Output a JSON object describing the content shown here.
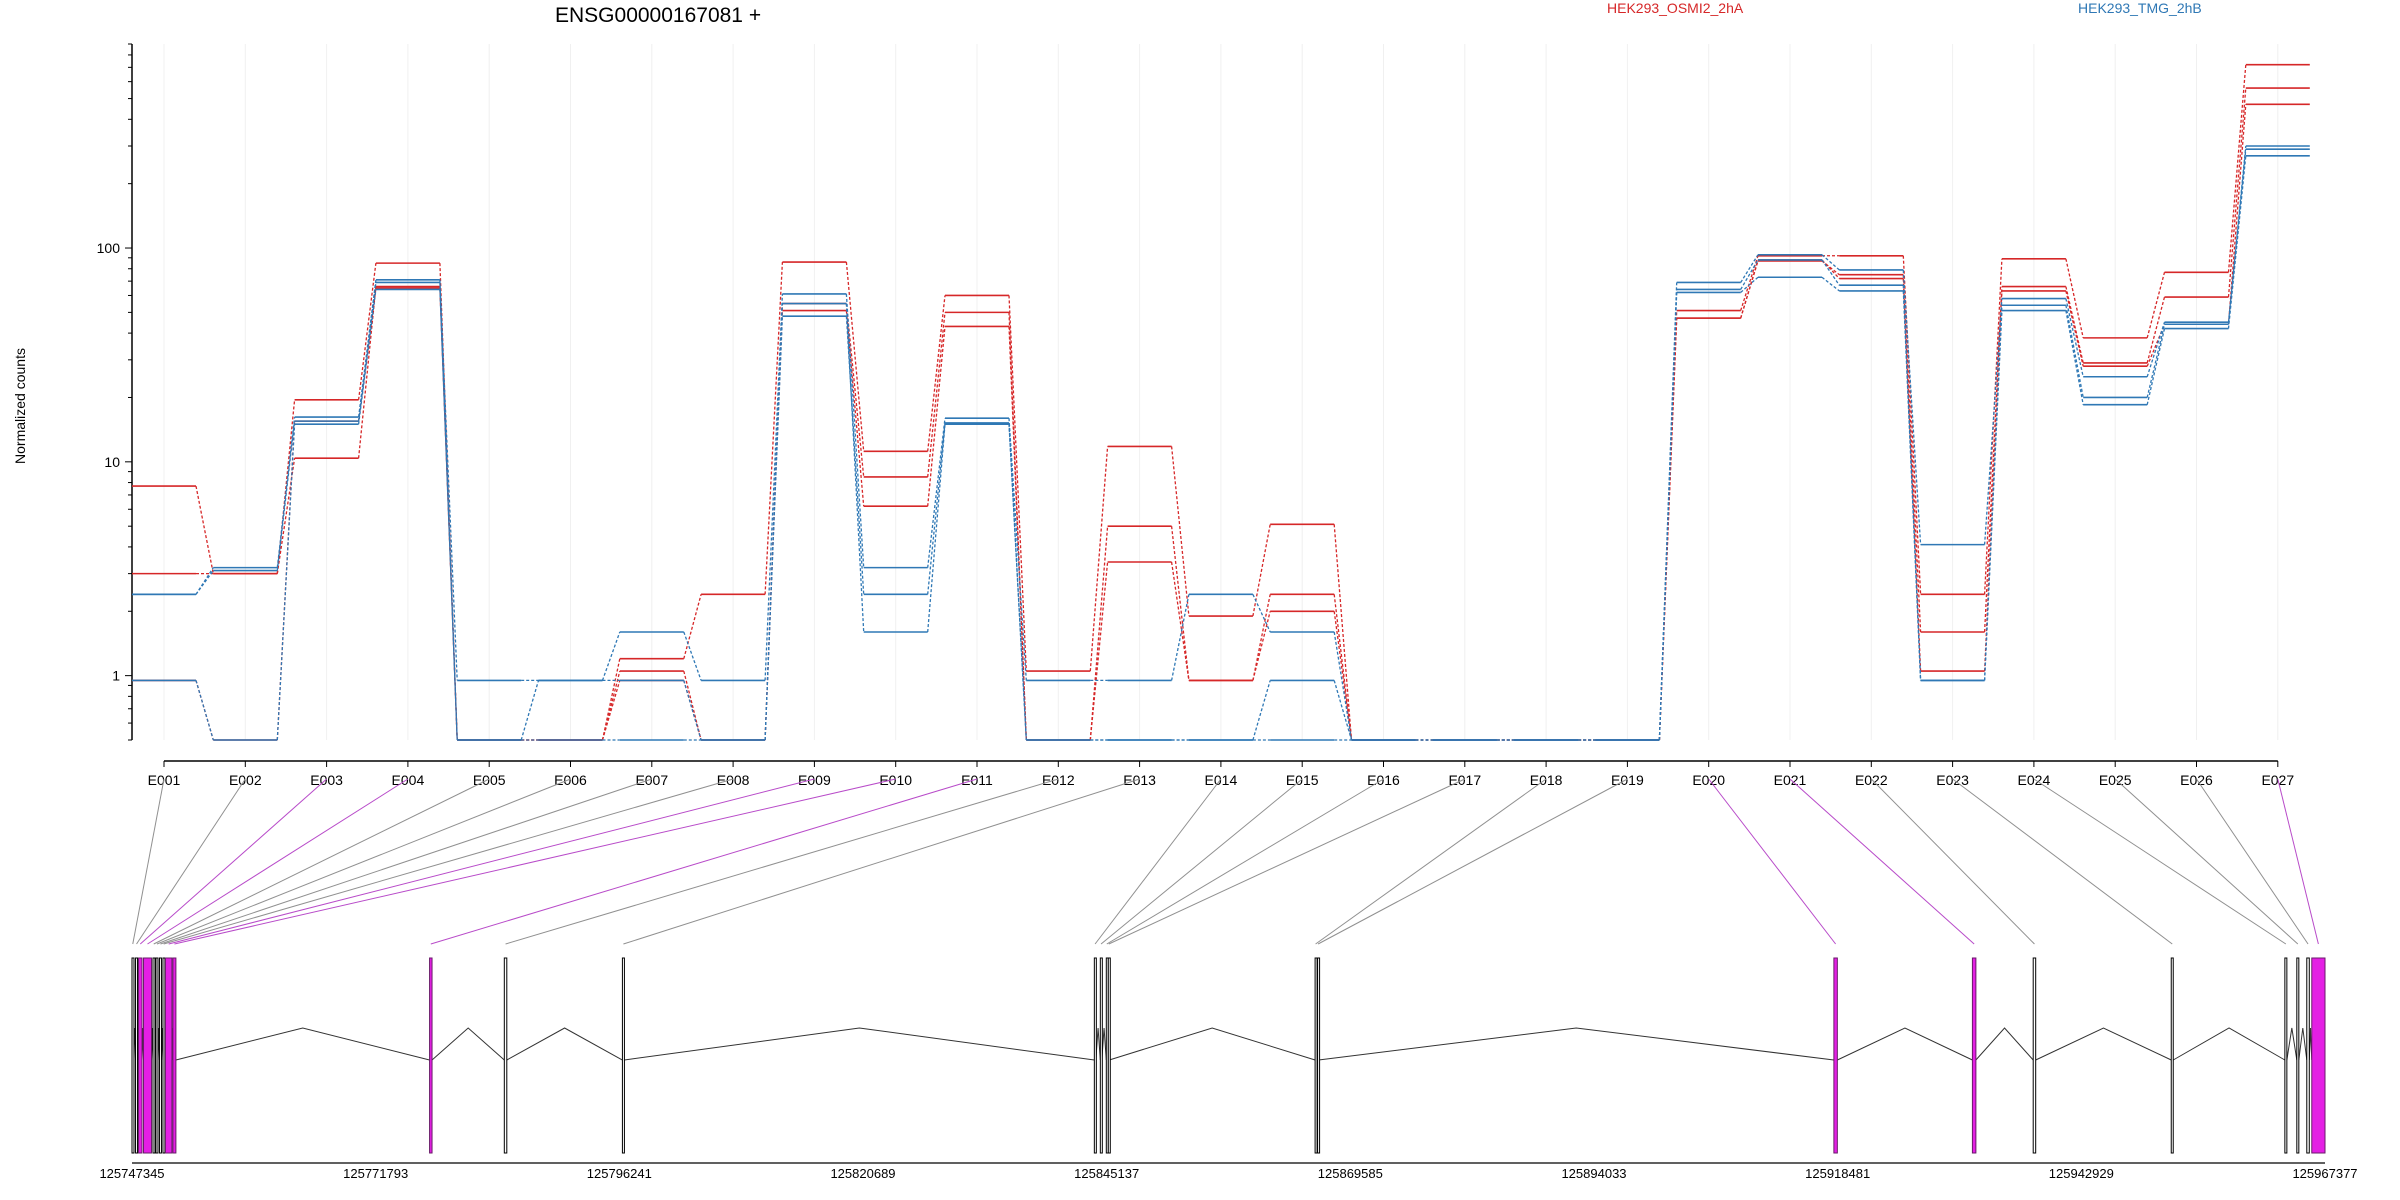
{
  "chart_data": {
    "type": "line",
    "title": "ENSG00000167081 +",
    "ylabel": "Normalized counts",
    "yscale": "log",
    "ylim": [
      0.5,
      900
    ],
    "yticks": [
      1,
      10,
      100
    ],
    "ytick_labels": [
      "1",
      "10",
      "100"
    ],
    "categories": [
      "E001",
      "E002",
      "E003",
      "E004",
      "E005",
      "E006",
      "E007",
      "E008",
      "E009",
      "E010",
      "E011",
      "E012",
      "E013",
      "E014",
      "E015",
      "E016",
      "E017",
      "E018",
      "E019",
      "E020",
      "E021",
      "E022",
      "E023",
      "E024",
      "E025",
      "E026",
      "E027"
    ],
    "legend": [
      {
        "label": "HEK293_OSMI2_2hA",
        "color": "#d62728"
      },
      {
        "label": "HEK293_TMG_2hB",
        "color": "#2f78b5"
      }
    ],
    "series": [
      {
        "group": "HEK293_OSMI2_2hA",
        "color": "#d62728",
        "values": [
          7.7,
          3.0,
          19.5,
          85,
          0.5,
          0.5,
          1.2,
          2.4,
          86,
          11.2,
          60,
          1.05,
          11.8,
          1.9,
          5.1,
          0.5,
          0.5,
          0.5,
          0.5,
          51,
          92,
          92,
          2.4,
          89,
          38,
          77,
          720
        ]
      },
      {
        "group": "HEK293_OSMI2_2hA",
        "color": "#d62728",
        "values": [
          3.0,
          3.0,
          10.4,
          66,
          0.5,
          0.5,
          1.05,
          0.5,
          55,
          8.5,
          50,
          0.5,
          5.0,
          0.95,
          2.4,
          0.5,
          0.5,
          0.5,
          0.5,
          47,
          87,
          75,
          1.6,
          66,
          29,
          59,
          560
        ]
      },
      {
        "group": "HEK293_OSMI2_2hA",
        "color": "#d62728",
        "values": [
          0.95,
          0.5,
          15.5,
          65,
          0.5,
          0.5,
          0.95,
          0.5,
          51,
          6.2,
          43,
          0.5,
          3.4,
          0.95,
          2.0,
          0.5,
          0.5,
          0.5,
          0.5,
          47,
          88,
          72,
          1.05,
          63,
          28,
          44,
          470
        ]
      },
      {
        "group": "HEK293_TMG_2hB",
        "color": "#2f78b5",
        "values": [
          2.4,
          3.2,
          16.2,
          71,
          0.95,
          0.95,
          1.6,
          0.95,
          61,
          3.2,
          16.0,
          0.95,
          0.95,
          2.4,
          1.6,
          0.5,
          0.5,
          0.5,
          0.5,
          69,
          93,
          79,
          4.1,
          58,
          25,
          45,
          300
        ]
      },
      {
        "group": "HEK293_TMG_2hB",
        "color": "#2f78b5",
        "values": [
          2.4,
          3.1,
          15.5,
          69,
          0.5,
          0.95,
          0.95,
          0.5,
          48,
          2.4,
          15.2,
          0.5,
          0.5,
          0.5,
          0.95,
          0.5,
          0.5,
          0.5,
          0.5,
          62,
          73,
          63,
          0.95,
          51,
          18.5,
          42,
          270
        ]
      },
      {
        "group": "HEK293_TMG_2hB",
        "color": "#2f78b5",
        "values": [
          0.95,
          0.5,
          15.0,
          64,
          0.5,
          0.5,
          0.5,
          0.5,
          55,
          1.6,
          15.0,
          0.5,
          0.5,
          0.5,
          0.5,
          0.5,
          0.5,
          0.5,
          0.5,
          64,
          88,
          67,
          0.95,
          54,
          20,
          44,
          290
        ]
      }
    ],
    "gene_model": {
      "coord_min": 125747345,
      "coord_max": 125967377,
      "ticks": [
        125747345,
        125771793,
        125796241,
        125820689,
        125845137,
        125869585,
        125894033,
        125918481,
        125942929,
        125967377
      ],
      "tick_labels": [
        "125747345",
        "125771793",
        "125796241",
        "125820689",
        "125845137",
        "125869585",
        "125894033",
        "125918481",
        "125942929",
        "125967377"
      ],
      "exons": [
        {
          "id": "E001",
          "start": 125747345,
          "end": 125747500,
          "highlight": false
        },
        {
          "id": "E002",
          "start": 125747700,
          "end": 125747900,
          "highlight": false
        },
        {
          "id": "E003",
          "start": 125748000,
          "end": 125748350,
          "highlight": true
        },
        {
          "id": "E004",
          "start": 125748500,
          "end": 125749300,
          "highlight": true
        },
        {
          "id": "E005",
          "start": 125749450,
          "end": 125749600,
          "highlight": false
        },
        {
          "id": "E006",
          "start": 125749750,
          "end": 125749950,
          "highlight": false
        },
        {
          "id": "E007",
          "start": 125750100,
          "end": 125750300,
          "highlight": false
        },
        {
          "id": "E008",
          "start": 125750450,
          "end": 125750600,
          "highlight": false
        },
        {
          "id": "E009",
          "start": 125750700,
          "end": 125751350,
          "highlight": true
        },
        {
          "id": "E010",
          "start": 125751450,
          "end": 125751750,
          "highlight": true
        },
        {
          "id": "E011",
          "start": 125777200,
          "end": 125777450,
          "highlight": true
        },
        {
          "id": "E012",
          "start": 125784700,
          "end": 125784950,
          "highlight": false
        },
        {
          "id": "E013",
          "start": 125796550,
          "end": 125796750,
          "highlight": false
        },
        {
          "id": "E014",
          "start": 125843900,
          "end": 125844050,
          "highlight": false
        },
        {
          "id": "E015",
          "start": 125844500,
          "end": 125844650,
          "highlight": false
        },
        {
          "id": "E016",
          "start": 125845100,
          "end": 125845200,
          "highlight": false
        },
        {
          "id": "E017",
          "start": 125845300,
          "end": 125845400,
          "highlight": false
        },
        {
          "id": "E018",
          "start": 125866050,
          "end": 125866150,
          "highlight": false
        },
        {
          "id": "E019",
          "start": 125866300,
          "end": 125866400,
          "highlight": false
        },
        {
          "id": "E020",
          "start": 125918100,
          "end": 125918450,
          "highlight": true
        },
        {
          "id": "E021",
          "start": 125932000,
          "end": 125932350,
          "highlight": true
        },
        {
          "id": "E022",
          "start": 125938100,
          "end": 125938350,
          "highlight": false
        },
        {
          "id": "E023",
          "start": 125951950,
          "end": 125952150,
          "highlight": false
        },
        {
          "id": "E024",
          "start": 125963350,
          "end": 125963550,
          "highlight": false
        },
        {
          "id": "E025",
          "start": 125964550,
          "end": 125964750,
          "highlight": false
        },
        {
          "id": "E026",
          "start": 125965550,
          "end": 125965800,
          "highlight": false
        },
        {
          "id": "E027",
          "start": 125966050,
          "end": 125967377,
          "highlight": true
        }
      ]
    }
  }
}
